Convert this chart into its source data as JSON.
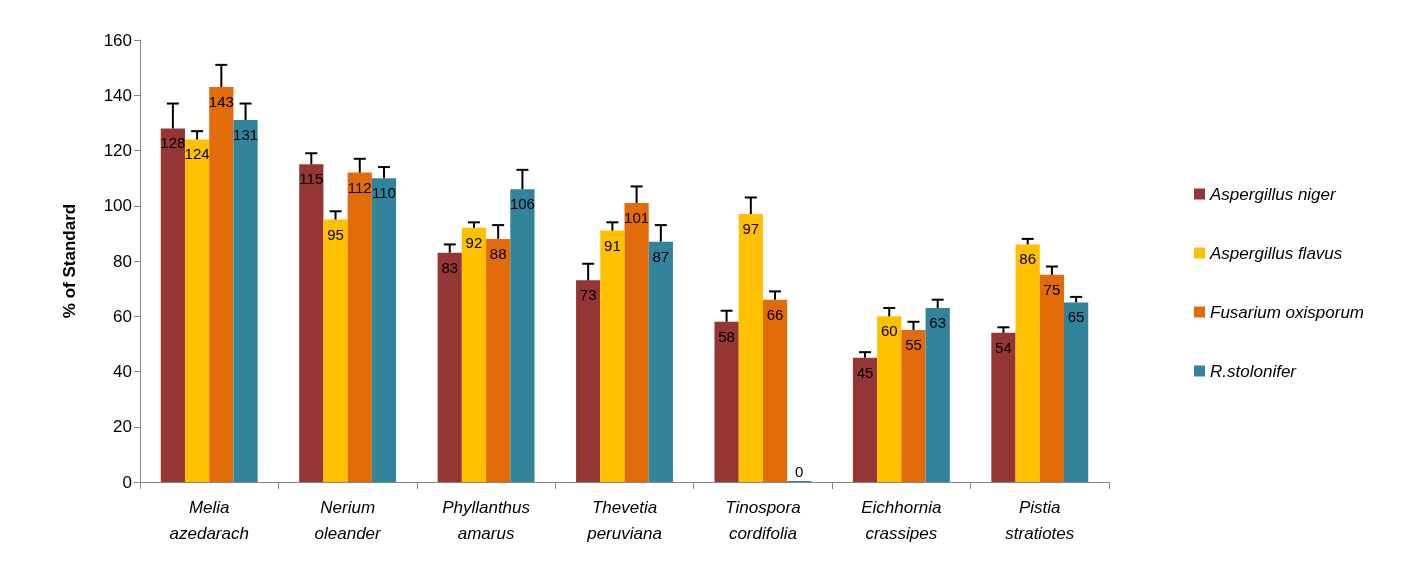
{
  "chart_data": {
    "type": "bar",
    "ylabel": "% of Standard",
    "categories": [
      "Melia\nazedarach",
      "Nerium\noleander",
      "Phyllanthus\namarus",
      "Thevetia\nperuviana",
      "Tinospora\ncordifolia",
      "Eichhornia\ncrassipes",
      "Pistia\nstratiotes"
    ],
    "series": [
      {
        "name": "Aspergillus niger",
        "color": "#943634",
        "values": [
          128,
          115,
          83,
          73,
          58,
          45,
          54
        ],
        "errors": [
          [
            128,
            137
          ],
          [
            115,
            119
          ],
          [
            83,
            86
          ],
          [
            73,
            79
          ],
          [
            58,
            62
          ],
          [
            45,
            47
          ],
          [
            54,
            56
          ]
        ]
      },
      {
        "name": "Aspergillus flavus",
        "color": "#ffc000",
        "values": [
          124,
          95,
          92,
          91,
          97,
          60,
          86
        ],
        "errors": [
          [
            124,
            127
          ],
          [
            95,
            98
          ],
          [
            92,
            94
          ],
          [
            91,
            94
          ],
          [
            97,
            103
          ],
          [
            60,
            63
          ],
          [
            86,
            88
          ]
        ]
      },
      {
        "name": "Fusarium oxisporum",
        "color": "#e36c0a",
        "values": [
          143,
          112,
          88,
          101,
          66,
          55,
          75
        ],
        "errors": [
          [
            143,
            151
          ],
          [
            112,
            117
          ],
          [
            88,
            93
          ],
          [
            101,
            107
          ],
          [
            66,
            69
          ],
          [
            55,
            58
          ],
          [
            75,
            78
          ]
        ]
      },
      {
        "name": "R.stolonifer",
        "color": "#31849b",
        "values": [
          131,
          110,
          106,
          87,
          0,
          63,
          65
        ],
        "errors": [
          [
            131,
            137
          ],
          [
            110,
            114
          ],
          [
            106,
            113
          ],
          [
            87,
            93
          ],
          null,
          [
            63,
            66
          ],
          [
            65,
            67
          ]
        ]
      }
    ],
    "ylim": [
      0,
      160
    ],
    "yticks": [
      0,
      20,
      40,
      60,
      80,
      100,
      120,
      140,
      160
    ],
    "grid": false,
    "legend": "right",
    "data_labels": true
  }
}
